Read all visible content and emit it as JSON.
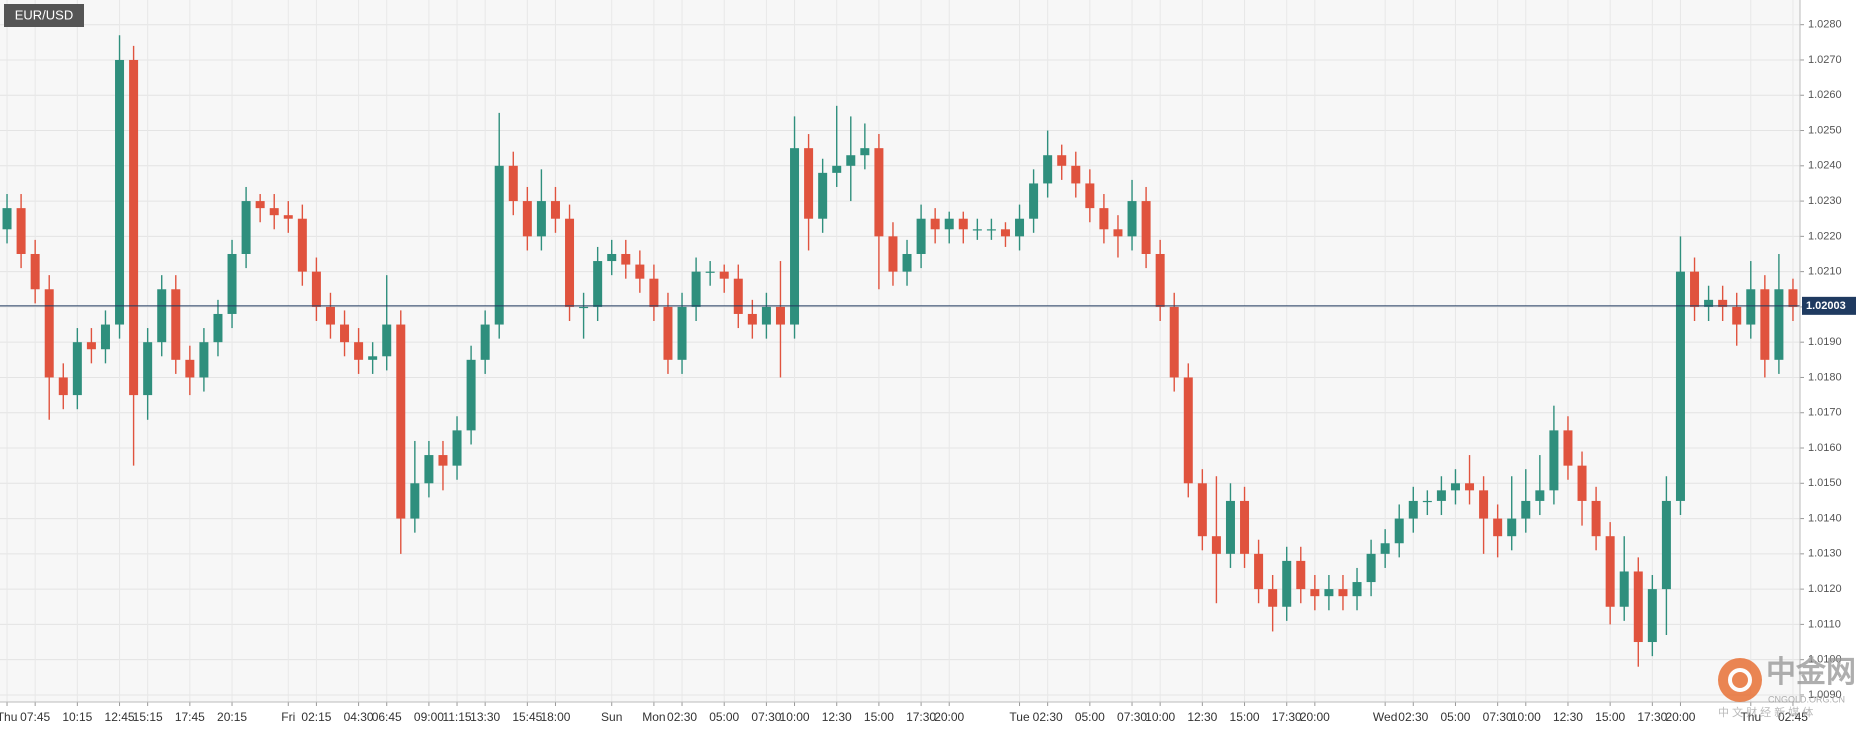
{
  "chart_data": {
    "type": "candlestick",
    "title": "EUR/USD",
    "categories": [
      "Thu",
      null,
      "07:45",
      null,
      null,
      "10:15",
      null,
      null,
      "12:45",
      null,
      "15:15",
      null,
      null,
      "17:45",
      null,
      null,
      "20:15",
      null,
      null,
      null,
      "Fri",
      null,
      "02:15",
      null,
      null,
      "04:30",
      null,
      "06:45",
      null,
      null,
      "09:00",
      null,
      "11:15",
      null,
      "13:30",
      null,
      null,
      "15:45",
      null,
      "18:00",
      null,
      null,
      null,
      "Sun",
      null,
      null,
      "Mon",
      null,
      "02:30",
      null,
      null,
      "05:00",
      null,
      null,
      "07:30",
      null,
      "10:00",
      null,
      null,
      "12:30",
      null,
      null,
      "15:00",
      null,
      null,
      "17:30",
      null,
      "20:00",
      null,
      null,
      null,
      null,
      "Tue",
      null,
      "02:30",
      null,
      null,
      "05:00",
      null,
      null,
      "07:30",
      null,
      "10:00",
      null,
      null,
      "12:30",
      null,
      null,
      "15:00",
      null,
      null,
      "17:30",
      null,
      "20:00",
      null,
      null,
      null,
      null,
      "Wed",
      null,
      "02:30",
      null,
      null,
      "05:00",
      null,
      null,
      "07:30",
      null,
      "10:00",
      null,
      null,
      "12:30",
      null,
      null,
      "15:00",
      null,
      null,
      "17:30",
      null,
      "20:00",
      null,
      null,
      null,
      null,
      "Thu",
      null,
      null,
      "02:45"
    ],
    "open": [
      1.0222,
      1.0228,
      1.0215,
      1.0205,
      1.018,
      1.0175,
      1.019,
      1.0188,
      1.0195,
      1.027,
      1.0175,
      1.019,
      1.0205,
      1.0185,
      1.018,
      1.019,
      1.0198,
      1.0215,
      1.023,
      1.0228,
      1.0226,
      1.0225,
      1.021,
      1.02,
      1.0195,
      1.019,
      1.0185,
      1.0186,
      1.0195,
      1.014,
      1.015,
      1.0158,
      1.0155,
      1.0165,
      1.0185,
      1.0195,
      1.024,
      1.023,
      1.022,
      1.023,
      1.0225,
      1.02,
      1.02,
      1.0213,
      1.0215,
      1.0212,
      1.0208,
      1.02,
      1.0185,
      1.02,
      1.021,
      1.021,
      1.0208,
      1.0198,
      1.0195,
      1.02,
      1.0195,
      1.0245,
      1.0225,
      1.0238,
      1.024,
      1.0243,
      1.0245,
      1.022,
      1.021,
      1.0215,
      1.0225,
      1.0222,
      1.0225,
      1.0222,
      1.0222,
      1.0222,
      1.022,
      1.0225,
      1.0235,
      1.0243,
      1.024,
      1.0235,
      1.0228,
      1.0222,
      1.022,
      1.023,
      1.0215,
      1.02,
      1.018,
      1.015,
      1.0135,
      1.013,
      1.0145,
      1.013,
      1.012,
      1.0115,
      1.0128,
      1.012,
      1.0118,
      1.012,
      1.0118,
      1.0122,
      1.013,
      1.0133,
      1.014,
      1.0145,
      1.0145,
      1.0148,
      1.015,
      1.0148,
      1.014,
      1.0135,
      1.014,
      1.0145,
      1.0148,
      1.0165,
      1.0155,
      1.0145,
      1.0135,
      1.0115,
      1.0125,
      1.0105,
      1.012,
      1.0145,
      1.021,
      1.02,
      1.0202,
      1.02,
      1.0195,
      1.0205,
      1.0185,
      1.0205
    ],
    "high": [
      1.0232,
      1.0232,
      1.0219,
      1.0209,
      1.0184,
      1.0194,
      1.0194,
      1.0199,
      1.0277,
      1.0274,
      1.0194,
      1.0209,
      1.0209,
      1.0189,
      1.0194,
      1.0202,
      1.0219,
      1.0234,
      1.0232,
      1.0232,
      1.023,
      1.0229,
      1.0214,
      1.0204,
      1.0199,
      1.0194,
      1.019,
      1.0209,
      1.0199,
      1.0162,
      1.0162,
      1.0162,
      1.0169,
      1.0189,
      1.0199,
      1.0255,
      1.0244,
      1.0234,
      1.0239,
      1.0234,
      1.0229,
      1.0204,
      1.0217,
      1.0219,
      1.0219,
      1.0216,
      1.0212,
      1.0204,
      1.0204,
      1.0214,
      1.0213,
      1.0212,
      1.0212,
      1.0202,
      1.0204,
      1.0213,
      1.0254,
      1.0249,
      1.0242,
      1.0257,
      1.0254,
      1.0252,
      1.0249,
      1.0224,
      1.0219,
      1.0229,
      1.0228,
      1.0227,
      1.0227,
      1.0225,
      1.0225,
      1.0224,
      1.0229,
      1.0239,
      1.025,
      1.0246,
      1.0244,
      1.0239,
      1.0232,
      1.0226,
      1.0236,
      1.0234,
      1.0219,
      1.0204,
      1.0184,
      1.0154,
      1.0152,
      1.015,
      1.0149,
      1.0134,
      1.0124,
      1.0132,
      1.0132,
      1.0124,
      1.0124,
      1.0124,
      1.0126,
      1.0134,
      1.0137,
      1.0144,
      1.0149,
      1.0148,
      1.0152,
      1.0154,
      1.0158,
      1.0152,
      1.0144,
      1.0152,
      1.0154,
      1.0158,
      1.0172,
      1.0169,
      1.0159,
      1.0149,
      1.0139,
      1.0135,
      1.0129,
      1.0124,
      1.0152,
      1.022,
      1.0214,
      1.0206,
      1.0206,
      1.0204,
      1.0213,
      1.0209,
      1.0215,
      1.0208
    ],
    "low": [
      1.0218,
      1.0211,
      1.0201,
      1.0168,
      1.0171,
      1.0171,
      1.0184,
      1.0184,
      1.0191,
      1.0155,
      1.0168,
      1.0186,
      1.0181,
      1.0175,
      1.0176,
      1.0186,
      1.0194,
      1.0211,
      1.0224,
      1.0222,
      1.0221,
      1.0206,
      1.0196,
      1.0191,
      1.0186,
      1.0181,
      1.0181,
      1.0182,
      1.013,
      1.0136,
      1.0146,
      1.0148,
      1.0151,
      1.0161,
      1.0181,
      1.0191,
      1.0226,
      1.0216,
      1.0216,
      1.0221,
      1.0196,
      1.0191,
      1.0196,
      1.0209,
      1.0208,
      1.0204,
      1.0196,
      1.0181,
      1.0181,
      1.0196,
      1.0206,
      1.0204,
      1.0194,
      1.0191,
      1.0191,
      1.018,
      1.0191,
      1.0216,
      1.0221,
      1.0234,
      1.023,
      1.0239,
      1.0205,
      1.0206,
      1.0206,
      1.0211,
      1.0218,
      1.0218,
      1.0218,
      1.0219,
      1.0219,
      1.0217,
      1.0216,
      1.0221,
      1.0231,
      1.0236,
      1.0231,
      1.0224,
      1.0218,
      1.0214,
      1.0216,
      1.0211,
      1.0196,
      1.0176,
      1.0146,
      1.0131,
      1.0116,
      1.0126,
      1.0126,
      1.0116,
      1.0108,
      1.0111,
      1.0116,
      1.0114,
      1.0114,
      1.0114,
      1.0114,
      1.0118,
      1.0126,
      1.0129,
      1.0136,
      1.0141,
      1.0141,
      1.0144,
      1.0144,
      1.013,
      1.0129,
      1.0131,
      1.0136,
      1.0141,
      1.0144,
      1.0151,
      1.0138,
      1.0131,
      1.011,
      1.0111,
      1.0098,
      1.0101,
      1.0107,
      1.0141,
      1.0196,
      1.0196,
      1.0196,
      1.0189,
      1.0191,
      1.018,
      1.0181,
      1.0196
    ],
    "close": [
      1.0228,
      1.0215,
      1.0205,
      1.018,
      1.0175,
      1.019,
      1.0188,
      1.0195,
      1.027,
      1.0175,
      1.019,
      1.0205,
      1.0185,
      1.018,
      1.019,
      1.0198,
      1.0215,
      1.023,
      1.0228,
      1.0226,
      1.0225,
      1.021,
      1.02,
      1.0195,
      1.019,
      1.0185,
      1.0186,
      1.0195,
      1.014,
      1.015,
      1.0158,
      1.0155,
      1.0165,
      1.0185,
      1.0195,
      1.024,
      1.023,
      1.022,
      1.023,
      1.0225,
      1.02,
      1.02,
      1.0213,
      1.0215,
      1.0212,
      1.0208,
      1.02,
      1.0185,
      1.02,
      1.021,
      1.021,
      1.0208,
      1.0198,
      1.0195,
      1.02,
      1.0195,
      1.0245,
      1.0225,
      1.0238,
      1.024,
      1.0243,
      1.0245,
      1.022,
      1.021,
      1.0215,
      1.0225,
      1.0222,
      1.0225,
      1.0222,
      1.0222,
      1.0222,
      1.022,
      1.0225,
      1.0235,
      1.0243,
      1.024,
      1.0235,
      1.0228,
      1.0222,
      1.022,
      1.023,
      1.0215,
      1.02,
      1.018,
      1.015,
      1.0135,
      1.013,
      1.0145,
      1.013,
      1.012,
      1.0115,
      1.0128,
      1.012,
      1.0118,
      1.012,
      1.0118,
      1.0122,
      1.013,
      1.0133,
      1.014,
      1.0145,
      1.0145,
      1.0148,
      1.015,
      1.0148,
      1.014,
      1.0135,
      1.014,
      1.0145,
      1.0148,
      1.0165,
      1.0155,
      1.0145,
      1.0135,
      1.0115,
      1.0125,
      1.0105,
      1.012,
      1.0145,
      1.021,
      1.02,
      1.0202,
      1.02,
      1.0195,
      1.0205,
      1.0185,
      1.0205,
      1.02
    ],
    "up_color": "#2f8f7d",
    "down_color": "#e0533e",
    "last_price": 1.02003,
    "last_price_color": "#1f3a60",
    "ylim": [
      1.0088,
      1.0287
    ],
    "yticks": [
      {
        "value": 1.009,
        "label": "1.0090"
      },
      {
        "value": 1.01,
        "label": "1.0100"
      },
      {
        "value": 1.011,
        "label": "1.0110"
      },
      {
        "value": 1.012,
        "label": "1.0120"
      },
      {
        "value": 1.013,
        "label": "1.0130"
      },
      {
        "value": 1.014,
        "label": "1.0140"
      },
      {
        "value": 1.015,
        "label": "1.0150"
      },
      {
        "value": 1.016,
        "label": "1.0160"
      },
      {
        "value": 1.017,
        "label": "1.0170"
      },
      {
        "value": 1.018,
        "label": "1.0180"
      },
      {
        "value": 1.019,
        "label": "1.0190"
      },
      {
        "value": 1.02,
        "label": "1.0200"
      },
      {
        "value": 1.021,
        "label": "1.0210"
      },
      {
        "value": 1.022,
        "label": "1.0220"
      },
      {
        "value": 1.023,
        "label": "1.0230"
      },
      {
        "value": 1.024,
        "label": "1.0240"
      },
      {
        "value": 1.025,
        "label": "1.0250"
      },
      {
        "value": 1.026,
        "label": "1.0260"
      },
      {
        "value": 1.027,
        "label": "1.0270"
      },
      {
        "value": 1.028,
        "label": "1.0280"
      }
    ],
    "grid": true
  },
  "watermark": {
    "name": "中金网",
    "site": "CNGOLD.ORG.CN",
    "slogan": "中 文 财 经 新 媒 体"
  }
}
